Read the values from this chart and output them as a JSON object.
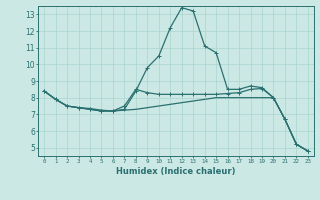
{
  "title": "",
  "xlabel": "Humidex (Indice chaleur)",
  "bg_color": "#cce8e4",
  "grid_color": "#aad4d0",
  "line_color": "#2a7070",
  "xlim": [
    -0.5,
    23.5
  ],
  "ylim": [
    4.5,
    13.5
  ],
  "yticks": [
    5,
    6,
    7,
    8,
    9,
    10,
    11,
    12,
    13
  ],
  "xticks": [
    0,
    1,
    2,
    3,
    4,
    5,
    6,
    7,
    8,
    9,
    10,
    11,
    12,
    13,
    14,
    15,
    16,
    17,
    18,
    19,
    20,
    21,
    22,
    23
  ],
  "series1": [
    [
      0,
      8.4
    ],
    [
      1,
      7.9
    ],
    [
      2,
      7.5
    ],
    [
      3,
      7.4
    ],
    [
      4,
      7.3
    ],
    [
      5,
      7.2
    ],
    [
      6,
      7.2
    ],
    [
      7,
      7.3
    ],
    [
      8,
      8.4
    ],
    [
      9,
      9.8
    ],
    [
      10,
      10.5
    ],
    [
      11,
      12.2
    ],
    [
      12,
      13.4
    ],
    [
      13,
      13.2
    ],
    [
      14,
      11.1
    ],
    [
      15,
      10.7
    ],
    [
      16,
      8.5
    ],
    [
      17,
      8.5
    ],
    [
      18,
      8.7
    ],
    [
      19,
      8.6
    ],
    [
      20,
      8.0
    ],
    [
      21,
      6.7
    ],
    [
      22,
      5.2
    ],
    [
      23,
      4.8
    ]
  ],
  "series2": [
    [
      0,
      8.4
    ],
    [
      1,
      7.9
    ],
    [
      2,
      7.5
    ],
    [
      3,
      7.4
    ],
    [
      4,
      7.3
    ],
    [
      5,
      7.2
    ],
    [
      6,
      7.2
    ],
    [
      7,
      7.5
    ],
    [
      8,
      8.5
    ],
    [
      9,
      8.3
    ],
    [
      10,
      8.2
    ],
    [
      11,
      8.2
    ],
    [
      12,
      8.2
    ],
    [
      13,
      8.2
    ],
    [
      14,
      8.2
    ],
    [
      15,
      8.2
    ],
    [
      16,
      8.25
    ],
    [
      17,
      8.3
    ],
    [
      18,
      8.5
    ],
    [
      19,
      8.55
    ],
    [
      20,
      8.0
    ],
    [
      21,
      6.7
    ],
    [
      22,
      5.2
    ],
    [
      23,
      4.8
    ]
  ],
  "series3": [
    [
      0,
      8.4
    ],
    [
      1,
      7.9
    ],
    [
      2,
      7.5
    ],
    [
      3,
      7.4
    ],
    [
      4,
      7.35
    ],
    [
      5,
      7.25
    ],
    [
      6,
      7.2
    ],
    [
      7,
      7.25
    ],
    [
      8,
      7.3
    ],
    [
      9,
      7.4
    ],
    [
      10,
      7.5
    ],
    [
      11,
      7.6
    ],
    [
      12,
      7.7
    ],
    [
      13,
      7.8
    ],
    [
      14,
      7.9
    ],
    [
      15,
      8.0
    ],
    [
      16,
      8.0
    ],
    [
      17,
      8.0
    ],
    [
      18,
      8.0
    ],
    [
      19,
      8.0
    ],
    [
      20,
      8.0
    ],
    [
      21,
      6.7
    ],
    [
      22,
      5.2
    ],
    [
      23,
      4.8
    ]
  ]
}
